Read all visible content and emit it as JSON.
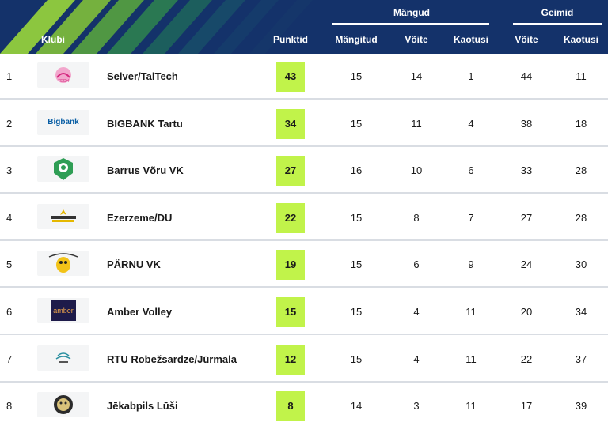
{
  "header": {
    "col_club": "Klubi",
    "col_points": "Punktid",
    "group_matches": "Mängud",
    "col_played": "Mängitud",
    "col_wins": "Võite",
    "col_losses": "Kaotusi",
    "group_sets": "Geimid",
    "col_sets_won": "Võite",
    "col_sets_lost": "Kaotusi"
  },
  "colors": {
    "header_bg": "#14326a",
    "stripe_green": "#8cc63f",
    "points_bg": "#c1f34a"
  },
  "rows": [
    {
      "rank": "1",
      "club": "Selver/TalTech",
      "logo_icon": "selver-taltech-logo-icon",
      "points": "43",
      "played": "15",
      "wins": "14",
      "losses": "1",
      "sets_won": "44",
      "sets_lost": "11"
    },
    {
      "rank": "2",
      "club": "BIGBANK Tartu",
      "logo_icon": "bigbank-logo-icon",
      "logo_text": "Bigbank",
      "points": "34",
      "played": "15",
      "wins": "11",
      "losses": "4",
      "sets_won": "38",
      "sets_lost": "18"
    },
    {
      "rank": "3",
      "club": "Barrus Võru VK",
      "logo_icon": "barrus-voru-logo-icon",
      "points": "27",
      "played": "16",
      "wins": "10",
      "losses": "6",
      "sets_won": "33",
      "sets_lost": "28"
    },
    {
      "rank": "4",
      "club": "Ezerzeme/DU",
      "logo_icon": "ezerzeme-logo-icon",
      "points": "22",
      "played": "15",
      "wins": "8",
      "losses": "7",
      "sets_won": "27",
      "sets_lost": "28"
    },
    {
      "rank": "5",
      "club": "PÄRNU VK",
      "logo_icon": "parnu-vk-logo-icon",
      "points": "19",
      "played": "15",
      "wins": "6",
      "losses": "9",
      "sets_won": "24",
      "sets_lost": "30"
    },
    {
      "rank": "6",
      "club": "Amber Volley",
      "logo_icon": "amber-volley-logo-icon",
      "logo_text": "amber",
      "points": "15",
      "played": "15",
      "wins": "4",
      "losses": "11",
      "sets_won": "20",
      "sets_lost": "34"
    },
    {
      "rank": "7",
      "club": "RTU Robežsardze/Jūrmala",
      "logo_icon": "rtu-jurmala-logo-icon",
      "points": "12",
      "played": "15",
      "wins": "4",
      "losses": "11",
      "sets_won": "22",
      "sets_lost": "37"
    },
    {
      "rank": "8",
      "club": "Jēkabpils Lūši",
      "logo_icon": "jekabpils-lusi-logo-icon",
      "points": "8",
      "played": "14",
      "wins": "3",
      "losses": "11",
      "sets_won": "17",
      "sets_lost": "39"
    }
  ]
}
